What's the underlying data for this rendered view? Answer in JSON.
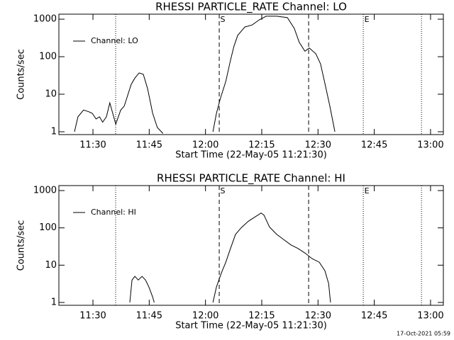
{
  "chart_data": [
    {
      "type": "line",
      "title": "RHESSI PARTICLE_RATE Channel: LO",
      "xlabel": "Start Time (22-May-05 11:21:30)",
      "ylabel": "Counts/sec",
      "x": [
        "11:25:05",
        "11:26:00",
        "11:27:30",
        "11:28:55",
        "11:29:50",
        "11:30:50",
        "11:31:45",
        "11:32:35",
        "11:33:35",
        "11:34:30",
        "11:36:05",
        "11:37:25",
        "11:38:20",
        "11:39:15",
        "11:40:10",
        "11:41:10",
        "11:42:20",
        "11:43:25",
        "11:44:35",
        "11:45:55",
        "11:47:10",
        "11:48:40",
        "11:55:00",
        "12:02:00",
        "12:02:55",
        "12:03:55",
        "12:05:25",
        "12:06:40",
        "12:07:35",
        "12:08:35",
        "12:10:30",
        "12:12:25",
        "12:14:20",
        "12:16:10",
        "12:19:00",
        "12:21:50",
        "12:23:40",
        "12:25:00",
        "12:26:30",
        "12:27:40",
        "12:29:25",
        "12:30:40",
        "12:31:55",
        "12:33:10",
        "12:34:30"
      ],
      "series": [
        {
          "name": "Channel: LO",
          "color": "#000000",
          "values": [
            1,
            2.5,
            3.8,
            3.4,
            3.1,
            2.2,
            2.5,
            1.8,
            2.5,
            5.9,
            1.6,
            3.8,
            4.8,
            9.2,
            18,
            27,
            37,
            34,
            14,
            3.1,
            1.3,
            0.9,
            null,
            1,
            3.1,
            7.4,
            22,
            80,
            190,
            370,
            620,
            700,
            960,
            1200,
            1200,
            1100,
            570,
            240,
            140,
            170,
            120,
            65,
            18,
            4.8,
            1
          ]
        }
      ],
      "xlim": [
        "11:20:55",
        "13:03:25"
      ],
      "xticks": [
        "11:30",
        "11:45",
        "12:00",
        "12:15",
        "12:30",
        "12:45",
        "13:00"
      ],
      "ylim": [
        0.84,
        1360
      ],
      "yticks": [
        1,
        10,
        100,
        1000
      ],
      "log_y": true,
      "legend": "top-left",
      "markers": [
        {
          "x": "11:36:03",
          "style": "dotted"
        },
        {
          "x": "12:03:40",
          "style": "dashed",
          "label": "S"
        },
        {
          "x": "12:27:30",
          "style": "dashed"
        },
        {
          "x": "12:42:04",
          "style": "dotted",
          "label": "E"
        },
        {
          "x": "12:57:35",
          "style": "dotted"
        }
      ]
    },
    {
      "type": "line",
      "title": "RHESSI PARTICLE_RATE Channel: HI",
      "xlabel": "Start Time (22-May-05 11:21:30)",
      "ylabel": "Counts/sec",
      "x": [
        "11:39:50",
        "11:40:25",
        "11:41:10",
        "11:42:05",
        "11:43:05",
        "11:44:00",
        "11:44:55",
        "11:45:55",
        "11:46:20",
        "11:55:00",
        "12:02:00",
        "12:02:55",
        "12:04:15",
        "12:05:25",
        "12:06:40",
        "12:08:00",
        "12:09:30",
        "12:11:25",
        "12:13:20",
        "12:14:50",
        "12:15:35",
        "12:17:05",
        "12:19:00",
        "12:20:55",
        "12:22:45",
        "12:24:40",
        "12:26:35",
        "12:28:25",
        "12:30:20",
        "12:31:50",
        "12:32:50",
        "12:33:20"
      ],
      "series": [
        {
          "name": "Channel: HI",
          "color": "#000000",
          "values": [
            1,
            4,
            5,
            4,
            5,
            4,
            2.6,
            1.4,
            1,
            null,
            1,
            2.6,
            6.2,
            12,
            28,
            67,
            100,
            150,
            200,
            250,
            220,
            105,
            67,
            48,
            35,
            28,
            21,
            15,
            12,
            7.1,
            3.2,
            1
          ]
        }
      ],
      "xlim": [
        "11:20:55",
        "13:03:25"
      ],
      "xticks": [
        "11:30",
        "11:45",
        "12:00",
        "12:15",
        "12:30",
        "12:45",
        "13:00"
      ],
      "ylim": [
        0.84,
        1360
      ],
      "yticks": [
        1,
        10,
        100,
        1000
      ],
      "log_y": true,
      "legend": "top-left",
      "markers": [
        {
          "x": "11:36:03",
          "style": "dotted"
        },
        {
          "x": "12:03:40",
          "style": "dashed",
          "label": "S"
        },
        {
          "x": "12:27:30",
          "style": "dashed"
        },
        {
          "x": "12:42:04",
          "style": "dotted",
          "label": "E"
        },
        {
          "x": "12:57:35",
          "style": "dotted"
        }
      ]
    }
  ],
  "footer": "17-Oct-2021 05:59"
}
